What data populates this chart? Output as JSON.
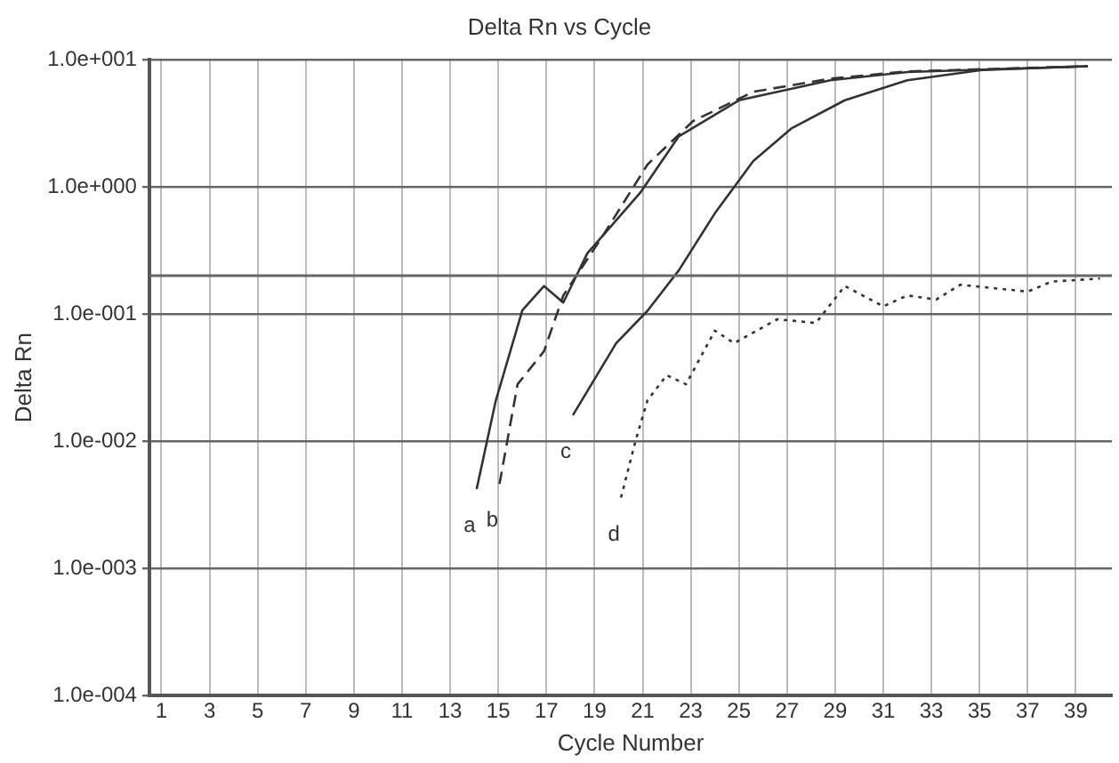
{
  "chart_data": {
    "type": "line",
    "title": "Delta Rn vs Cycle",
    "xlabel": "Cycle Number",
    "ylabel": "Delta Rn",
    "log": "y",
    "grid": true,
    "legend": false,
    "marker": "none",
    "xlim": [
      0.5,
      40.5
    ],
    "xticks": [
      1,
      3,
      5,
      7,
      9,
      11,
      13,
      15,
      17,
      19,
      21,
      23,
      25,
      27,
      29,
      31,
      33,
      35,
      37,
      39
    ],
    "ylim": [
      0.0001,
      10
    ],
    "yticks": [
      {
        "value": 0.0001,
        "label": "1.0e-004"
      },
      {
        "value": 0.001,
        "label": "1.0e-003"
      },
      {
        "value": 0.01,
        "label": "1.0e-002"
      },
      {
        "value": 0.1,
        "label": "1.0e-001"
      },
      {
        "value": 1,
        "label": "1.0e+000"
      },
      {
        "value": 10,
        "label": "1.0e+001"
      }
    ],
    "ref_lines": [
      {
        "axis": "y",
        "value": 0.2,
        "color": "#666666"
      }
    ],
    "series": [
      {
        "name": "a",
        "color": "#333333",
        "line_style": "solid",
        "x": [
          14.1,
          14.9,
          16.0,
          16.9,
          17.7,
          18.7,
          20.9,
          22.5,
          25,
          28.8,
          32,
          39.5
        ],
        "values": [
          0.0042,
          0.021,
          0.107,
          0.166,
          0.123,
          0.3,
          0.9,
          2.5,
          4.8,
          6.9,
          8,
          8.9
        ]
      },
      {
        "name": "b",
        "color": "#333333",
        "line_style": "dashed",
        "x": [
          15.05,
          15.8,
          16.9,
          17.7,
          19.3,
          21.2,
          23.1,
          25.6,
          28.8,
          32,
          39.5
        ],
        "values": [
          0.0046,
          0.028,
          0.051,
          0.14,
          0.4,
          1.5,
          3.3,
          5.6,
          7.1,
          8.1,
          8.9
        ]
      },
      {
        "name": "c",
        "color": "#333333",
        "line_style": "solid",
        "x": [
          18.1,
          19.9,
          21.2,
          22.5,
          24.0,
          25.6,
          27.2,
          29.4,
          32,
          35.1,
          39.5
        ],
        "values": [
          0.016,
          0.059,
          0.106,
          0.22,
          0.62,
          1.6,
          2.9,
          4.8,
          6.9,
          8.3,
          8.9
        ]
      },
      {
        "name": "d",
        "color": "#333333",
        "line_style": "dotted",
        "x": [
          20.1,
          20.7,
          21.2,
          22.0,
          22.8,
          24.0,
          24.8,
          26.6,
          28.2,
          29.4,
          31.0,
          32,
          33.2,
          34.2,
          37,
          38,
          40
        ],
        "values": [
          0.0036,
          0.01,
          0.021,
          0.033,
          0.028,
          0.074,
          0.059,
          0.091,
          0.085,
          0.166,
          0.115,
          0.14,
          0.13,
          0.17,
          0.15,
          0.18,
          0.19
        ]
      }
    ]
  }
}
